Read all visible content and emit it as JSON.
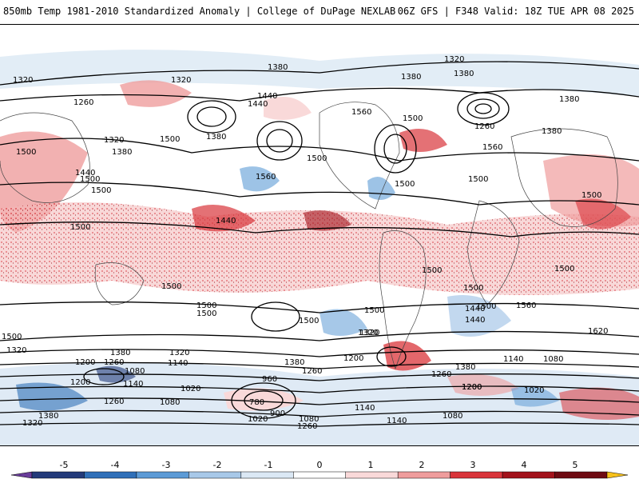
{
  "header": {
    "title": "850mb Temp 1981-2010 Standardized Anomaly | College of DuPage NEXLAB",
    "run_info": "06Z GFS | F348 Valid: 18Z TUE APR 08 2025"
  },
  "contour_labels": [
    "1320",
    "1380",
    "1320",
    "1380",
    "1380",
    "1320",
    "1260",
    "1440",
    "1440",
    "1320",
    "1380",
    "1260",
    "1560",
    "1500",
    "1380",
    "1380",
    "1500",
    "1500",
    "1440",
    "1500",
    "1380",
    "1500",
    "1500",
    "1500",
    "1560",
    "1560",
    "1500",
    "1500",
    "1500",
    "1440",
    "1500",
    "1500",
    "1500",
    "1500",
    "1500",
    "1500",
    "1500",
    "1560",
    "1440",
    "1500",
    "1320",
    "1620",
    "1320",
    "1200",
    "1380",
    "1260",
    "1080",
    "1440",
    "1500",
    "1320",
    "1380",
    "1200",
    "1260",
    "1080",
    "1140",
    "1020",
    "1200",
    "1140",
    "1260",
    "960",
    "1380",
    "1260",
    "1200",
    "1080",
    "1140",
    "1020",
    "1380",
    "780",
    "900",
    "1020",
    "1080",
    "1260",
    "1140",
    "1140",
    "1080",
    "1320",
    "1200",
    "1500",
    "1320"
  ],
  "colorbar": {
    "ticks": [
      "-5",
      "-4",
      "-3",
      "-2",
      "-1",
      "0",
      "1",
      "2",
      "3",
      "4",
      "5"
    ],
    "colors": [
      "#6a3d9a",
      "#233a7a",
      "#2f6fb8",
      "#5c9bd6",
      "#a8c8e8",
      "#dbe8f4",
      "#ffffff",
      "#f9d9d9",
      "#ef9d9d",
      "#d9343a",
      "#a3121b",
      "#6e0a12",
      "#f7c11b"
    ]
  }
}
